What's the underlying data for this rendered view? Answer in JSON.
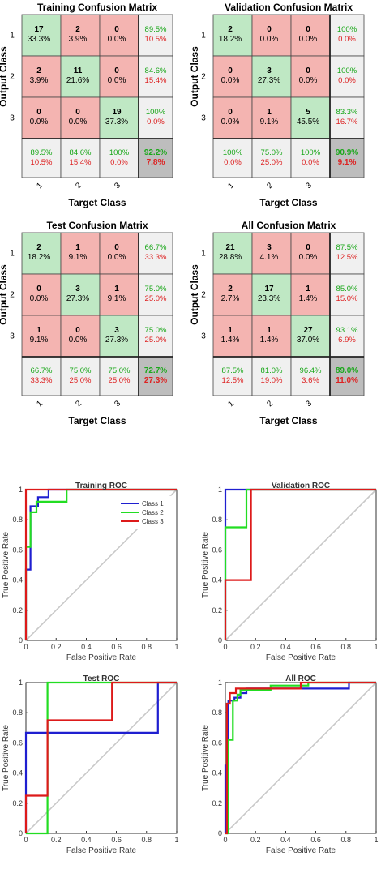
{
  "colors": {
    "correct": "#bfe8c4",
    "wrong": "#f4b4b1",
    "summary": "#f0f0f0",
    "total": "#bdbdbd",
    "green_text": "#1aa71a",
    "red_text": "#dd2222",
    "class1": "#1f1fd0",
    "class2": "#22dd22",
    "class3": "#dd1a1a",
    "diagonal": "#c8c8c8"
  },
  "chart_data": [
    {
      "type": "heatmap",
      "title": "Training Confusion Matrix",
      "xlabel": "Target Class",
      "ylabel": "Output Class",
      "class_labels": [
        "1",
        "2",
        "3"
      ],
      "counts": [
        [
          17,
          2,
          0
        ],
        [
          2,
          11,
          0
        ],
        [
          0,
          0,
          19
        ]
      ],
      "percents": [
        [
          "33.3%",
          "3.9%",
          "0.0%"
        ],
        [
          "3.9%",
          "21.6%",
          "0.0%"
        ],
        [
          "0.0%",
          "0.0%",
          "37.3%"
        ]
      ],
      "row_summary": [
        [
          "89.5%",
          "10.5%"
        ],
        [
          "84.6%",
          "15.4%"
        ],
        [
          "100%",
          "0.0%"
        ]
      ],
      "col_summary": [
        [
          "89.5%",
          "10.5%"
        ],
        [
          "84.6%",
          "15.4%"
        ],
        [
          "100%",
          "0.0%"
        ]
      ],
      "total": [
        "92.2%",
        "7.8%"
      ]
    },
    {
      "type": "heatmap",
      "title": "Validation Confusion Matrix",
      "xlabel": "Target Class",
      "ylabel": "Output Class",
      "class_labels": [
        "1",
        "2",
        "3"
      ],
      "counts": [
        [
          2,
          0,
          0
        ],
        [
          0,
          3,
          0
        ],
        [
          0,
          1,
          5
        ]
      ],
      "percents": [
        [
          "18.2%",
          "0.0%",
          "0.0%"
        ],
        [
          "0.0%",
          "27.3%",
          "0.0%"
        ],
        [
          "0.0%",
          "9.1%",
          "45.5%"
        ]
      ],
      "row_summary": [
        [
          "100%",
          "0.0%"
        ],
        [
          "100%",
          "0.0%"
        ],
        [
          "83.3%",
          "16.7%"
        ]
      ],
      "col_summary": [
        [
          "100%",
          "0.0%"
        ],
        [
          "75.0%",
          "25.0%"
        ],
        [
          "100%",
          "0.0%"
        ]
      ],
      "total": [
        "90.9%",
        "9.1%"
      ]
    },
    {
      "type": "heatmap",
      "title": "Test Confusion Matrix",
      "xlabel": "Target Class",
      "ylabel": "Output Class",
      "class_labels": [
        "1",
        "2",
        "3"
      ],
      "counts": [
        [
          2,
          1,
          0
        ],
        [
          0,
          3,
          1
        ],
        [
          1,
          0,
          3
        ]
      ],
      "percents": [
        [
          "18.2%",
          "9.1%",
          "0.0%"
        ],
        [
          "0.0%",
          "27.3%",
          "9.1%"
        ],
        [
          "9.1%",
          "0.0%",
          "27.3%"
        ]
      ],
      "row_summary": [
        [
          "66.7%",
          "33.3%"
        ],
        [
          "75.0%",
          "25.0%"
        ],
        [
          "75.0%",
          "25.0%"
        ]
      ],
      "col_summary": [
        [
          "66.7%",
          "33.3%"
        ],
        [
          "75.0%",
          "25.0%"
        ],
        [
          "75.0%",
          "25.0%"
        ]
      ],
      "total": [
        "72.7%",
        "27.3%"
      ]
    },
    {
      "type": "heatmap",
      "title": "All Confusion Matrix",
      "xlabel": "Target Class",
      "ylabel": "Output Class",
      "class_labels": [
        "1",
        "2",
        "3"
      ],
      "counts": [
        [
          21,
          3,
          0
        ],
        [
          2,
          17,
          1
        ],
        [
          1,
          1,
          27
        ]
      ],
      "percents": [
        [
          "28.8%",
          "4.1%",
          "0.0%"
        ],
        [
          "2.7%",
          "23.3%",
          "1.4%"
        ],
        [
          "1.4%",
          "1.4%",
          "37.0%"
        ]
      ],
      "row_summary": [
        [
          "87.5%",
          "12.5%"
        ],
        [
          "85.0%",
          "15.0%"
        ],
        [
          "93.1%",
          "6.9%"
        ]
      ],
      "col_summary": [
        [
          "87.5%",
          "12.5%"
        ],
        [
          "81.0%",
          "19.0%"
        ],
        [
          "96.4%",
          "3.6%"
        ]
      ],
      "total": [
        "89.0%",
        "11.0%"
      ]
    },
    {
      "type": "line",
      "title": "Training ROC",
      "xlabel": "False Positive Rate",
      "ylabel": "True Positive Rate",
      "xlim": [
        0,
        1
      ],
      "ylim": [
        0,
        1
      ],
      "ticks": [
        "0",
        "0.2",
        "0.4",
        "0.6",
        "0.8",
        "1"
      ],
      "legend": "top-right",
      "series": [
        {
          "name": "Class 1",
          "color_key": "class1",
          "points": [
            [
              0,
              0
            ],
            [
              0,
              0.47
            ],
            [
              0.03,
              0.47
            ],
            [
              0.03,
              0.89
            ],
            [
              0.08,
              0.89
            ],
            [
              0.08,
              0.95
            ],
            [
              0.15,
              0.95
            ],
            [
              0.15,
              1
            ],
            [
              1,
              1
            ]
          ]
        },
        {
          "name": "Class 2",
          "color_key": "class2",
          "points": [
            [
              0,
              0
            ],
            [
              0,
              0.62
            ],
            [
              0.03,
              0.62
            ],
            [
              0.03,
              0.85
            ],
            [
              0.07,
              0.85
            ],
            [
              0.07,
              0.92
            ],
            [
              0.27,
              0.92
            ],
            [
              0.27,
              1
            ],
            [
              1,
              1
            ]
          ]
        },
        {
          "name": "Class 3",
          "color_key": "class3",
          "points": [
            [
              0,
              0
            ],
            [
              0,
              1
            ],
            [
              1,
              1
            ]
          ]
        }
      ]
    },
    {
      "type": "line",
      "title": "Validation ROC",
      "xlabel": "False Positive Rate",
      "ylabel": "True Positive Rate",
      "xlim": [
        0,
        1
      ],
      "ylim": [
        0,
        1
      ],
      "ticks": [
        "0",
        "0.2",
        "0.4",
        "0.6",
        "0.8",
        "1"
      ],
      "series": [
        {
          "name": "Class 1",
          "color_key": "class1",
          "points": [
            [
              0,
              0
            ],
            [
              0,
              1
            ],
            [
              1,
              1
            ]
          ]
        },
        {
          "name": "Class 2",
          "color_key": "class2",
          "points": [
            [
              0,
              0
            ],
            [
              0,
              0.75
            ],
            [
              0.14,
              0.75
            ],
            [
              0.14,
              1
            ],
            [
              1,
              1
            ]
          ]
        },
        {
          "name": "Class 3",
          "color_key": "class3",
          "points": [
            [
              0,
              0
            ],
            [
              0,
              0.4
            ],
            [
              0.17,
              0.4
            ],
            [
              0.17,
              1
            ],
            [
              1,
              1
            ]
          ]
        }
      ]
    },
    {
      "type": "line",
      "title": "Test ROC",
      "xlabel": "False Positive Rate",
      "ylabel": "True Positive Rate",
      "xlim": [
        0,
        1
      ],
      "ylim": [
        0,
        1
      ],
      "ticks": [
        "0",
        "0.2",
        "0.4",
        "0.6",
        "0.8",
        "1"
      ],
      "series": [
        {
          "name": "Class 1",
          "color_key": "class1",
          "points": [
            [
              0,
              0
            ],
            [
              0,
              0.667
            ],
            [
              0.875,
              0.667
            ],
            [
              0.875,
              1
            ],
            [
              1,
              1
            ]
          ]
        },
        {
          "name": "Class 2",
          "color_key": "class2",
          "points": [
            [
              0,
              0
            ],
            [
              0.143,
              0
            ],
            [
              0.143,
              1
            ],
            [
              1,
              1
            ]
          ]
        },
        {
          "name": "Class 3",
          "color_key": "class3",
          "points": [
            [
              0,
              0
            ],
            [
              0,
              0.25
            ],
            [
              0.143,
              0.25
            ],
            [
              0.143,
              0.75
            ],
            [
              0.571,
              0.75
            ],
            [
              0.571,
              1
            ],
            [
              1,
              1
            ]
          ]
        }
      ]
    },
    {
      "type": "line",
      "title": "All ROC",
      "xlabel": "False Positive Rate",
      "ylabel": "True Positive Rate",
      "xlim": [
        0,
        1
      ],
      "ylim": [
        0,
        1
      ],
      "ticks": [
        "0",
        "0.2",
        "0.4",
        "0.6",
        "0.8",
        "1"
      ],
      "series": [
        {
          "name": "Class 1",
          "color_key": "class1",
          "points": [
            [
              0,
              0
            ],
            [
              0,
              0.45
            ],
            [
              0.02,
              0.45
            ],
            [
              0.02,
              0.88
            ],
            [
              0.06,
              0.88
            ],
            [
              0.06,
              0.9
            ],
            [
              0.1,
              0.9
            ],
            [
              0.1,
              0.93
            ],
            [
              0.14,
              0.93
            ],
            [
              0.14,
              0.96
            ],
            [
              0.82,
              0.96
            ],
            [
              0.82,
              1
            ],
            [
              1,
              1
            ]
          ]
        },
        {
          "name": "Class 2",
          "color_key": "class2",
          "points": [
            [
              0,
              0
            ],
            [
              0.02,
              0
            ],
            [
              0.02,
              0.62
            ],
            [
              0.05,
              0.62
            ],
            [
              0.05,
              0.88
            ],
            [
              0.08,
              0.88
            ],
            [
              0.08,
              0.92
            ],
            [
              0.1,
              0.92
            ],
            [
              0.1,
              0.95
            ],
            [
              0.3,
              0.95
            ],
            [
              0.3,
              0.98
            ],
            [
              0.55,
              0.98
            ],
            [
              0.55,
              1
            ],
            [
              1,
              1
            ]
          ]
        },
        {
          "name": "Class 3",
          "color_key": "class3",
          "points": [
            [
              0,
              0
            ],
            [
              0.01,
              0
            ],
            [
              0.01,
              0.86
            ],
            [
              0.03,
              0.86
            ],
            [
              0.03,
              0.93
            ],
            [
              0.07,
              0.93
            ],
            [
              0.07,
              0.96
            ],
            [
              0.5,
              0.96
            ],
            [
              0.5,
              1
            ],
            [
              1,
              1
            ]
          ]
        }
      ]
    }
  ]
}
